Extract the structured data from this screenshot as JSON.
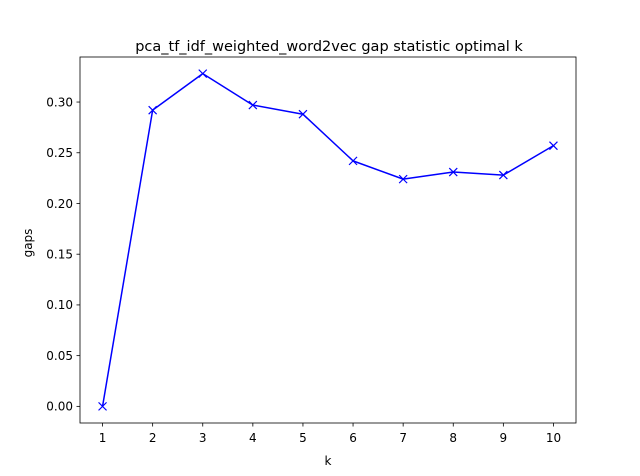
{
  "chart_data": {
    "type": "line",
    "title": "pca_tf_idf_weighted_word2vec gap statistic optimal k",
    "xlabel": "k",
    "ylabel": "gaps",
    "x": [
      1,
      2,
      3,
      4,
      5,
      6,
      7,
      8,
      9,
      10
    ],
    "series": [
      {
        "values": [
          0.0,
          0.292,
          0.328,
          0.297,
          0.288,
          0.242,
          0.224,
          0.231,
          0.228,
          0.257
        ],
        "color": "#0000ff",
        "marker": "x"
      }
    ],
    "xlim": [
      0.55,
      10.45
    ],
    "ylim": [
      -0.0164,
      0.3444
    ],
    "xticks": [
      1,
      2,
      3,
      4,
      5,
      6,
      7,
      8,
      9,
      10
    ],
    "xtick_labels": [
      "1",
      "2",
      "3",
      "4",
      "5",
      "6",
      "7",
      "8",
      "9",
      "10"
    ],
    "yticks": [
      0.0,
      0.05,
      0.1,
      0.15,
      0.2,
      0.25,
      0.3
    ],
    "ytick_labels": [
      "0.00",
      "0.05",
      "0.10",
      "0.15",
      "0.20",
      "0.25",
      "0.30"
    ],
    "grid": false,
    "legend": "none"
  }
}
